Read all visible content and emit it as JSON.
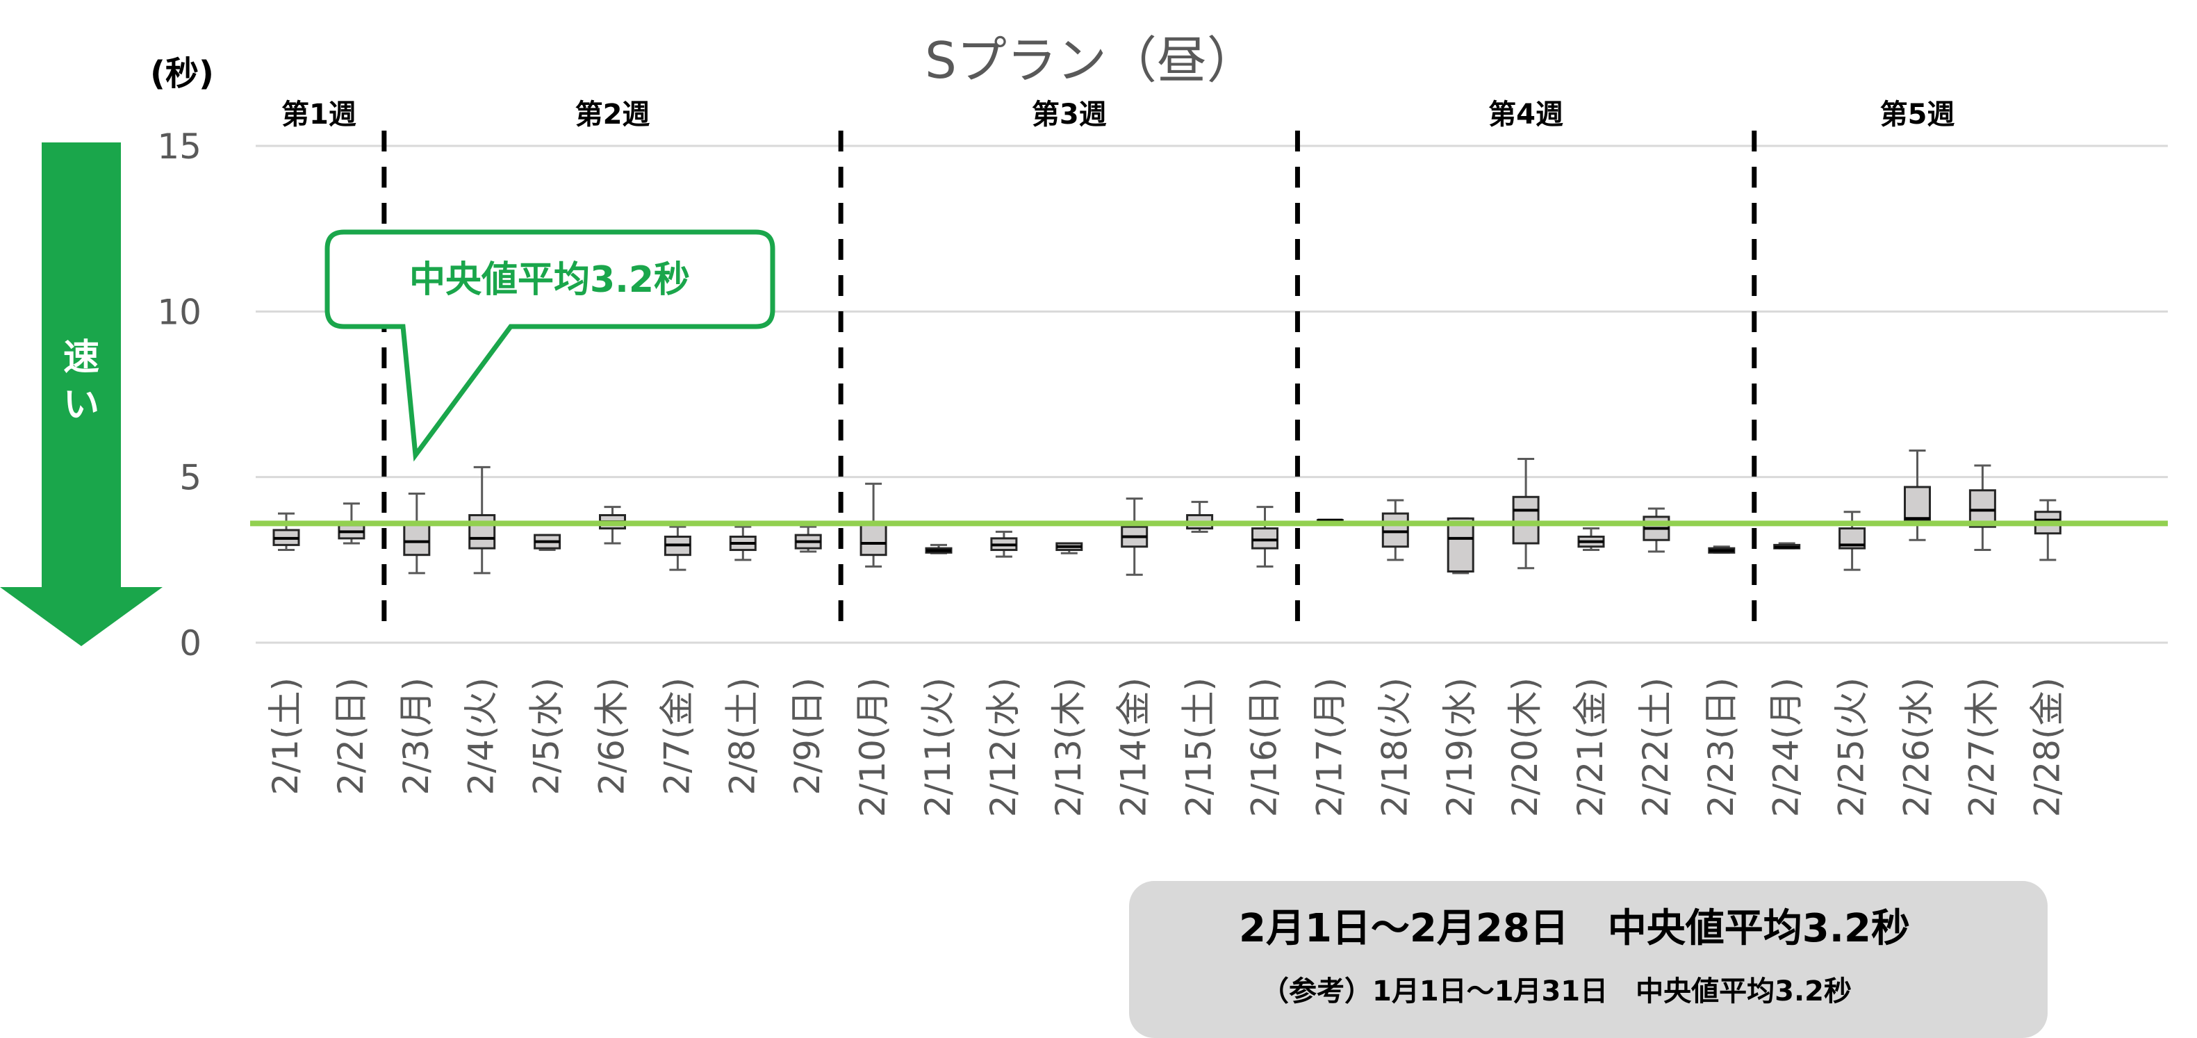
{
  "chart_data": {
    "type": "boxplot",
    "title": "Sプラン（昼）",
    "ylabel": "(秒)",
    "ylim": [
      0,
      15
    ],
    "yticks": [
      0,
      5,
      10,
      15
    ],
    "grid": true,
    "categories": [
      "2/1(土)",
      "2/2(日)",
      "2/3(月)",
      "2/4(火)",
      "2/5(水)",
      "2/6(木)",
      "2/7(金)",
      "2/8(土)",
      "2/9(日)",
      "2/10(月)",
      "2/11(火)",
      "2/12(水)",
      "2/13(木)",
      "2/14(金)",
      "2/15(土)",
      "2/16(日)",
      "2/17(月)",
      "2/18(火)",
      "2/19(水)",
      "2/20(木)",
      "2/21(金)",
      "2/22(土)",
      "2/23(日)",
      "2/24(月)",
      "2/25(火)",
      "2/26(水)",
      "2/27(木)",
      "2/28(金)"
    ],
    "boxes": [
      {
        "min": 2.8,
        "q1": 2.95,
        "median": 3.15,
        "q3": 3.4,
        "max": 3.9
      },
      {
        "min": 3.0,
        "q1": 3.15,
        "median": 3.35,
        "q3": 3.55,
        "max": 4.2
      },
      {
        "min": 2.1,
        "q1": 2.65,
        "median": 3.05,
        "q3": 3.6,
        "max": 4.5
      },
      {
        "min": 2.1,
        "q1": 2.85,
        "median": 3.15,
        "q3": 3.85,
        "max": 5.3
      },
      {
        "min": 2.8,
        "q1": 2.85,
        "median": 3.05,
        "q3": 3.25,
        "max": 3.25
      },
      {
        "min": 3.0,
        "q1": 3.45,
        "median": 3.65,
        "q3": 3.85,
        "max": 4.1
      },
      {
        "min": 2.2,
        "q1": 2.65,
        "median": 2.95,
        "q3": 3.2,
        "max": 3.5
      },
      {
        "min": 2.5,
        "q1": 2.8,
        "median": 3.0,
        "q3": 3.2,
        "max": 3.5
      },
      {
        "min": 2.75,
        "q1": 2.85,
        "median": 3.05,
        "q3": 3.25,
        "max": 3.5
      },
      {
        "min": 2.3,
        "q1": 2.65,
        "median": 3.0,
        "q3": 3.6,
        "max": 4.8
      },
      {
        "min": 2.7,
        "q1": 2.72,
        "median": 2.78,
        "q3": 2.85,
        "max": 2.95
      },
      {
        "min": 2.6,
        "q1": 2.8,
        "median": 2.95,
        "q3": 3.15,
        "max": 3.35
      },
      {
        "min": 2.7,
        "q1": 2.8,
        "median": 2.9,
        "q3": 3.0,
        "max": 3.0
      },
      {
        "min": 2.05,
        "q1": 2.9,
        "median": 3.2,
        "q3": 3.5,
        "max": 4.35
      },
      {
        "min": 3.35,
        "q1": 3.45,
        "median": 3.6,
        "q3": 3.85,
        "max": 4.25
      },
      {
        "min": 2.3,
        "q1": 2.85,
        "median": 3.1,
        "q3": 3.45,
        "max": 4.1
      },
      {
        "min": 3.7,
        "q1": 3.7,
        "median": 3.7,
        "q3": 3.7,
        "max": 3.7
      },
      {
        "min": 2.5,
        "q1": 2.9,
        "median": 3.35,
        "q3": 3.9,
        "max": 4.3
      },
      {
        "min": 2.1,
        "q1": 2.15,
        "median": 3.15,
        "q3": 3.75,
        "max": 3.75
      },
      {
        "min": 2.25,
        "q1": 3.0,
        "median": 4.0,
        "q3": 4.4,
        "max": 5.55
      },
      {
        "min": 2.8,
        "q1": 2.9,
        "median": 3.05,
        "q3": 3.2,
        "max": 3.45
      },
      {
        "min": 2.75,
        "q1": 3.1,
        "median": 3.45,
        "q3": 3.8,
        "max": 4.05
      },
      {
        "min": 2.72,
        "q1": 2.72,
        "median": 2.78,
        "q3": 2.85,
        "max": 2.9
      },
      {
        "min": 2.85,
        "q1": 2.85,
        "median": 2.88,
        "q3": 2.95,
        "max": 3.0
      },
      {
        "min": 2.2,
        "q1": 2.85,
        "median": 2.95,
        "q3": 3.45,
        "max": 3.95
      },
      {
        "min": 3.1,
        "q1": 3.7,
        "median": 3.75,
        "q3": 4.7,
        "max": 5.8
      },
      {
        "min": 2.8,
        "q1": 3.5,
        "median": 4.0,
        "q3": 4.6,
        "max": 5.35
      },
      {
        "min": 2.5,
        "q1": 3.3,
        "median": 3.7,
        "q3": 3.95,
        "max": 4.3
      }
    ],
    "reference_line": {
      "value": 3.6,
      "color": "#92d050"
    },
    "box_color": "#d0cece",
    "weeks": [
      {
        "label": "第1週",
        "start": 0,
        "end": 1
      },
      {
        "label": "第2週",
        "start": 2,
        "end": 8
      },
      {
        "label": "第3週",
        "start": 9,
        "end": 15
      },
      {
        "label": "第4週",
        "start": 16,
        "end": 22
      },
      {
        "label": "第5週",
        "start": 23,
        "end": 27
      }
    ]
  },
  "arrow": {
    "text_line1": "速",
    "text_line2": "い",
    "color": "#1aa64b"
  },
  "callout": {
    "text": "中央値平均3.2秒",
    "color": "#1aa64b"
  },
  "summary": {
    "main": "2月1日～2月28日　中央値平均3.2秒",
    "sub": "（参考）1月1日～1月31日　中央値平均3.2秒",
    "bg": "#d9d9d9"
  }
}
